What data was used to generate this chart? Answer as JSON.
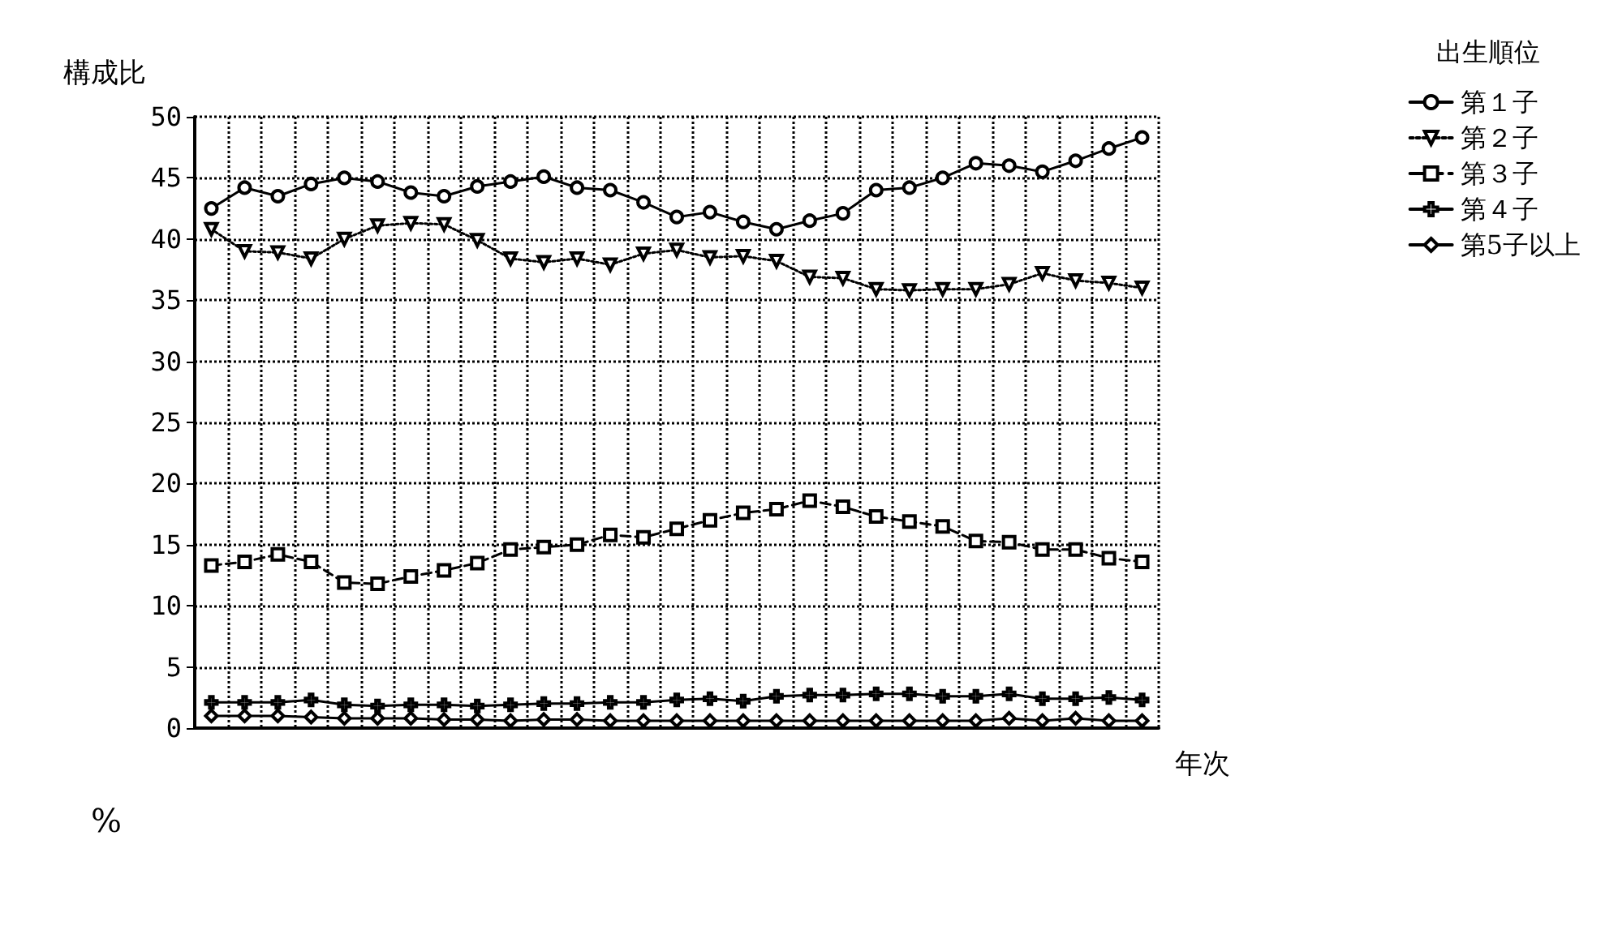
{
  "chart_data": {
    "type": "line",
    "ylabel": "構成比",
    "xlabel": "年次",
    "legend_title": "出生順位",
    "annotations": [
      "%"
    ],
    "categories": [
      null,
      null,
      null,
      null,
      null,
      null,
      null,
      null,
      null,
      null,
      null,
      null,
      null,
      null,
      null,
      null,
      null,
      null,
      null,
      null,
      null,
      null,
      null,
      null,
      null,
      null,
      null,
      null,
      null
    ],
    "ylim": [
      0,
      50
    ],
    "yticks": [
      0,
      5,
      10,
      15,
      20,
      25,
      30,
      35,
      40,
      45,
      50
    ],
    "grid": true,
    "legend": "top right",
    "series": [
      {
        "name": "第１子",
        "color": "#000000",
        "marker": "circle",
        "line_style": "solid",
        "values": [
          42.5,
          44.2,
          43.5,
          44.5,
          45.0,
          44.7,
          43.8,
          43.5,
          44.3,
          44.7,
          45.1,
          44.2,
          44.0,
          43.0,
          41.8,
          42.2,
          41.4,
          40.8,
          41.5,
          42.1,
          44.0,
          44.2,
          45.0,
          46.2,
          46.0,
          45.5,
          46.4,
          47.4,
          48.3
        ]
      },
      {
        "name": "第２子",
        "color": "#000000",
        "marker": "triangle",
        "line_style": "dotted",
        "values": [
          40.8,
          39.0,
          38.9,
          38.4,
          40.0,
          41.1,
          41.3,
          41.2,
          39.9,
          38.4,
          38.1,
          38.4,
          37.9,
          38.8,
          39.1,
          38.5,
          38.6,
          38.2,
          36.9,
          36.8,
          35.9,
          35.8,
          35.9,
          35.9,
          36.3,
          37.2,
          36.6,
          36.4,
          36.0
        ]
      },
      {
        "name": "第３子",
        "color": "#000000",
        "marker": "square",
        "line_style": "dashed",
        "values": [
          13.3,
          13.6,
          14.2,
          13.6,
          11.9,
          11.8,
          12.4,
          12.9,
          13.5,
          14.6,
          14.8,
          15.0,
          15.8,
          15.6,
          16.3,
          17.0,
          17.6,
          17.9,
          18.6,
          18.1,
          17.3,
          16.9,
          16.5,
          15.3,
          15.2,
          14.6,
          14.6,
          13.9,
          13.6
        ]
      },
      {
        "name": "第４子",
        "color": "#000000",
        "marker": "cross",
        "line_style": "solid",
        "values": [
          2.1,
          2.1,
          2.1,
          2.3,
          1.9,
          1.8,
          1.9,
          1.9,
          1.8,
          1.9,
          2.0,
          2.0,
          2.1,
          2.1,
          2.3,
          2.4,
          2.2,
          2.6,
          2.7,
          2.7,
          2.8,
          2.8,
          2.6,
          2.6,
          2.8,
          2.4,
          2.4,
          2.5,
          2.3
        ]
      },
      {
        "name": "第5子以上",
        "color": "#000000",
        "marker": "diamond",
        "line_style": "solid",
        "values": [
          1.0,
          1.0,
          1.0,
          0.9,
          0.8,
          0.8,
          0.8,
          0.7,
          0.7,
          0.6,
          0.7,
          0.7,
          0.6,
          0.6,
          0.6,
          0.6,
          0.6,
          0.6,
          0.6,
          0.6,
          0.6,
          0.6,
          0.6,
          0.6,
          0.8,
          0.6,
          0.8,
          0.6,
          0.6
        ]
      }
    ]
  }
}
